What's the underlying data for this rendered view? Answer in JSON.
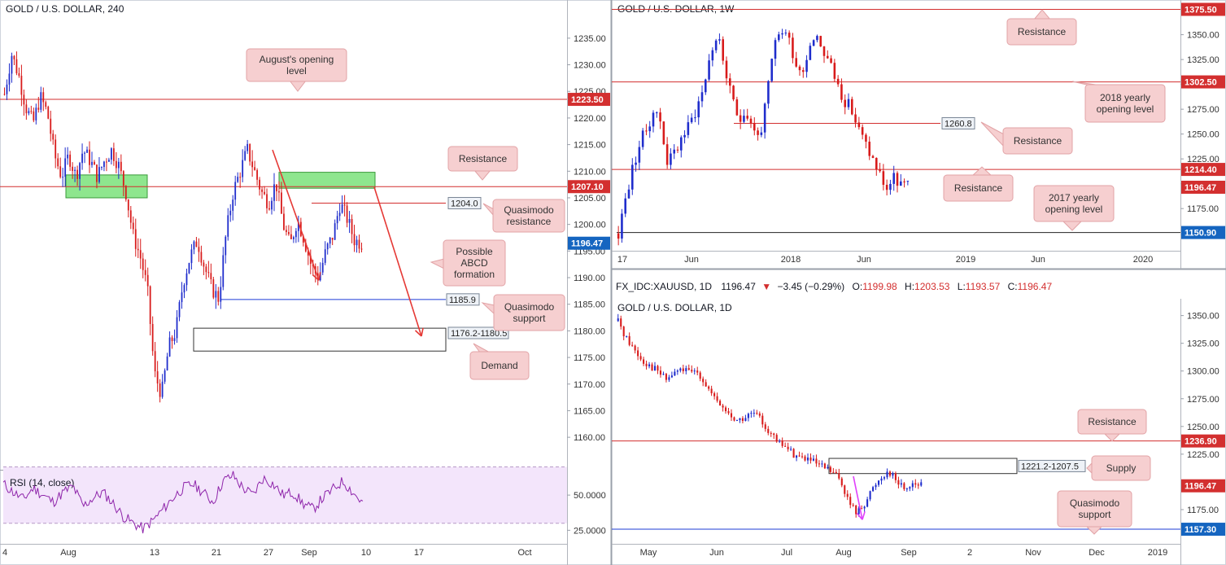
{
  "chart_data": [
    {
      "id": "h4",
      "type": "candlestick",
      "title": "GOLD / U.S. DOLLAR, 240",
      "ylim": [
        1156.5,
        1238.5
      ],
      "yticks": [
        "1235.00",
        "1230.00",
        "1225.00",
        "1220.00",
        "1215.00",
        "1210.00",
        "1205.00",
        "1200.00",
        "1195.00",
        "1190.00",
        "1185.00",
        "1180.00",
        "1175.00",
        "1170.00",
        "1165.00",
        "1160.00"
      ],
      "xticks": [
        "4",
        "Aug",
        "13",
        "21",
        "27",
        "Sep",
        "10",
        "17",
        "Oct"
      ],
      "price_tags": [
        {
          "value": "1223.50",
          "price": 1223.5,
          "color": "#d32f2f"
        },
        {
          "value": "1207.10",
          "price": 1207.1,
          "color": "#d32f2f"
        },
        {
          "value": "1196.47",
          "price": 1196.47,
          "color": "#1565c0"
        }
      ],
      "levels": [
        {
          "label": "1204.0",
          "price": 1204.0
        },
        {
          "label": "1185.9",
          "price": 1185.9
        }
      ],
      "zone_label": "1176.2-1180.5",
      "zone_range": [
        1176.2,
        1180.5
      ],
      "key_points": [
        1224.5,
        1232,
        1228,
        1222,
        1219,
        1224,
        1221,
        1213,
        1209,
        1213,
        1209,
        1214,
        1212,
        1209,
        1212,
        1214,
        1211,
        1206,
        1198,
        1194,
        1188,
        1172,
        1168,
        1177,
        1180,
        1189,
        1194,
        1197,
        1192,
        1188,
        1186,
        1198,
        1206,
        1210,
        1214,
        1210,
        1206,
        1204,
        1208,
        1200,
        1196,
        1201,
        1197,
        1192,
        1190,
        1195,
        1198,
        1204,
        1201,
        1197,
        1196.5
      ],
      "annotations": [
        {
          "text": [
            "August's opening",
            "level"
          ]
        },
        {
          "text": [
            "Resistance"
          ]
        },
        {
          "text": [
            "Quasimodo",
            "resistance"
          ]
        },
        {
          "text": [
            "Possible",
            "ABCD",
            "formation"
          ]
        },
        {
          "text": [
            "Quasimodo",
            "support"
          ]
        },
        {
          "text": [
            "Demand"
          ]
        }
      ],
      "rsi": {
        "title": "RSI (14, close)",
        "ylim": [
          20,
          68
        ],
        "ticks": [
          "50.0000",
          "25.0000"
        ],
        "bands": [
          70,
          30
        ]
      }
    },
    {
      "id": "weekly",
      "type": "candlestick",
      "title": "GOLD / U.S. DOLLAR, 1W",
      "ylim": [
        1135,
        1380
      ],
      "yticks": [
        "1350.00",
        "1325.00",
        "1300.00",
        "1275.00",
        "1250.00",
        "1225.00",
        "1200.00",
        "1175.00"
      ],
      "xticks": [
        "17",
        "Jun",
        "2018",
        "Jun",
        "2019",
        "Jun",
        "2020"
      ],
      "price_tags": [
        {
          "value": "1375.50",
          "price": 1375.5,
          "color": "#d32f2f"
        },
        {
          "value": "1302.50",
          "price": 1302.5,
          "color": "#d32f2f"
        },
        {
          "value": "1214.40",
          "price": 1214.4,
          "color": "#d32f2f"
        },
        {
          "value": "1196.47",
          "price": 1196.47,
          "color": "#d32f2f"
        },
        {
          "value": "1150.90",
          "price": 1150.9,
          "color": "#1565c0"
        }
      ],
      "levels": [
        {
          "label": "1260.8",
          "price": 1260.8
        }
      ],
      "key_points": [
        1150,
        1185,
        1215,
        1240,
        1255,
        1275,
        1262,
        1220,
        1232,
        1248,
        1258,
        1275,
        1295,
        1330,
        1350,
        1320,
        1285,
        1265,
        1275,
        1258,
        1245,
        1285,
        1335,
        1355,
        1350,
        1325,
        1310,
        1340,
        1352,
        1335,
        1320,
        1300,
        1285,
        1275,
        1255,
        1240,
        1225,
        1210,
        1195,
        1205,
        1200,
        1196.5
      ],
      "annotations": [
        {
          "text": [
            "Resistance"
          ]
        },
        {
          "text": [
            "2018 yearly",
            "opening level"
          ]
        },
        {
          "text": [
            "Resistance"
          ]
        },
        {
          "text": [
            "Resistance"
          ]
        },
        {
          "text": [
            "2017 yearly",
            "opening level"
          ]
        }
      ]
    },
    {
      "id": "daily",
      "type": "candlestick",
      "title": "GOLD / U.S. DOLLAR, 1D",
      "ylim": [
        1150,
        1360
      ],
      "yticks": [
        "1350.00",
        "1325.00",
        "1300.00",
        "1275.00",
        "1250.00",
        "1225.00",
        "1175.00"
      ],
      "xticks": [
        "May",
        "Jun",
        "Jul",
        "Aug",
        "Sep",
        "2",
        "Nov",
        "Dec",
        "2019"
      ],
      "price_tags": [
        {
          "value": "1236.90",
          "price": 1236.9,
          "color": "#d32f2f"
        },
        {
          "value": "1196.47",
          "price": 1196.47,
          "color": "#d32f2f"
        },
        {
          "value": "1157.30",
          "price": 1157.3,
          "color": "#1565c0"
        }
      ],
      "zone_label": "1221.2-1207.5",
      "zone_range": [
        1207.5,
        1221.2
      ],
      "key_points": [
        1345,
        1330,
        1320,
        1310,
        1305,
        1300,
        1292,
        1298,
        1302,
        1298,
        1300,
        1288,
        1275,
        1268,
        1260,
        1255,
        1258,
        1262,
        1255,
        1245,
        1235,
        1232,
        1225,
        1222,
        1220,
        1215,
        1212,
        1208,
        1200,
        1180,
        1172,
        1182,
        1195,
        1205,
        1210,
        1200,
        1194,
        1200,
        1196.5
      ],
      "annotations": [
        {
          "text": [
            "Resistance"
          ]
        },
        {
          "text": [
            "Supply"
          ]
        },
        {
          "text": [
            "Quasimodo",
            "support"
          ]
        }
      ]
    }
  ],
  "quote_bar": {
    "symbol": "FX_IDC:XAUUSD, 1D",
    "price": "1196.47",
    "change": "−3.45 (−0.29%)",
    "o_label": "O:",
    "o_value": "1199.98",
    "h_label": "H:",
    "h_value": "1203.53",
    "l_label": "L:",
    "l_value": "1193.57",
    "c_label": "C:",
    "c_value": "1196.47",
    "down_arrow": "▼"
  },
  "colors": {
    "bull": "#1f2dcc",
    "bear": "#d81b1b",
    "level_red": "#d32f2f",
    "level_blue": "#1e3bd6",
    "green_zone": "#8ee68e",
    "note_fill": "#f6cfd0",
    "note_stroke": "#e2a3a6",
    "rsi_fill": "#f3e5fb",
    "rsi_line": "#8e24aa",
    "arrow_red": "#e53935",
    "arrow_magenta": "#e040fb"
  }
}
